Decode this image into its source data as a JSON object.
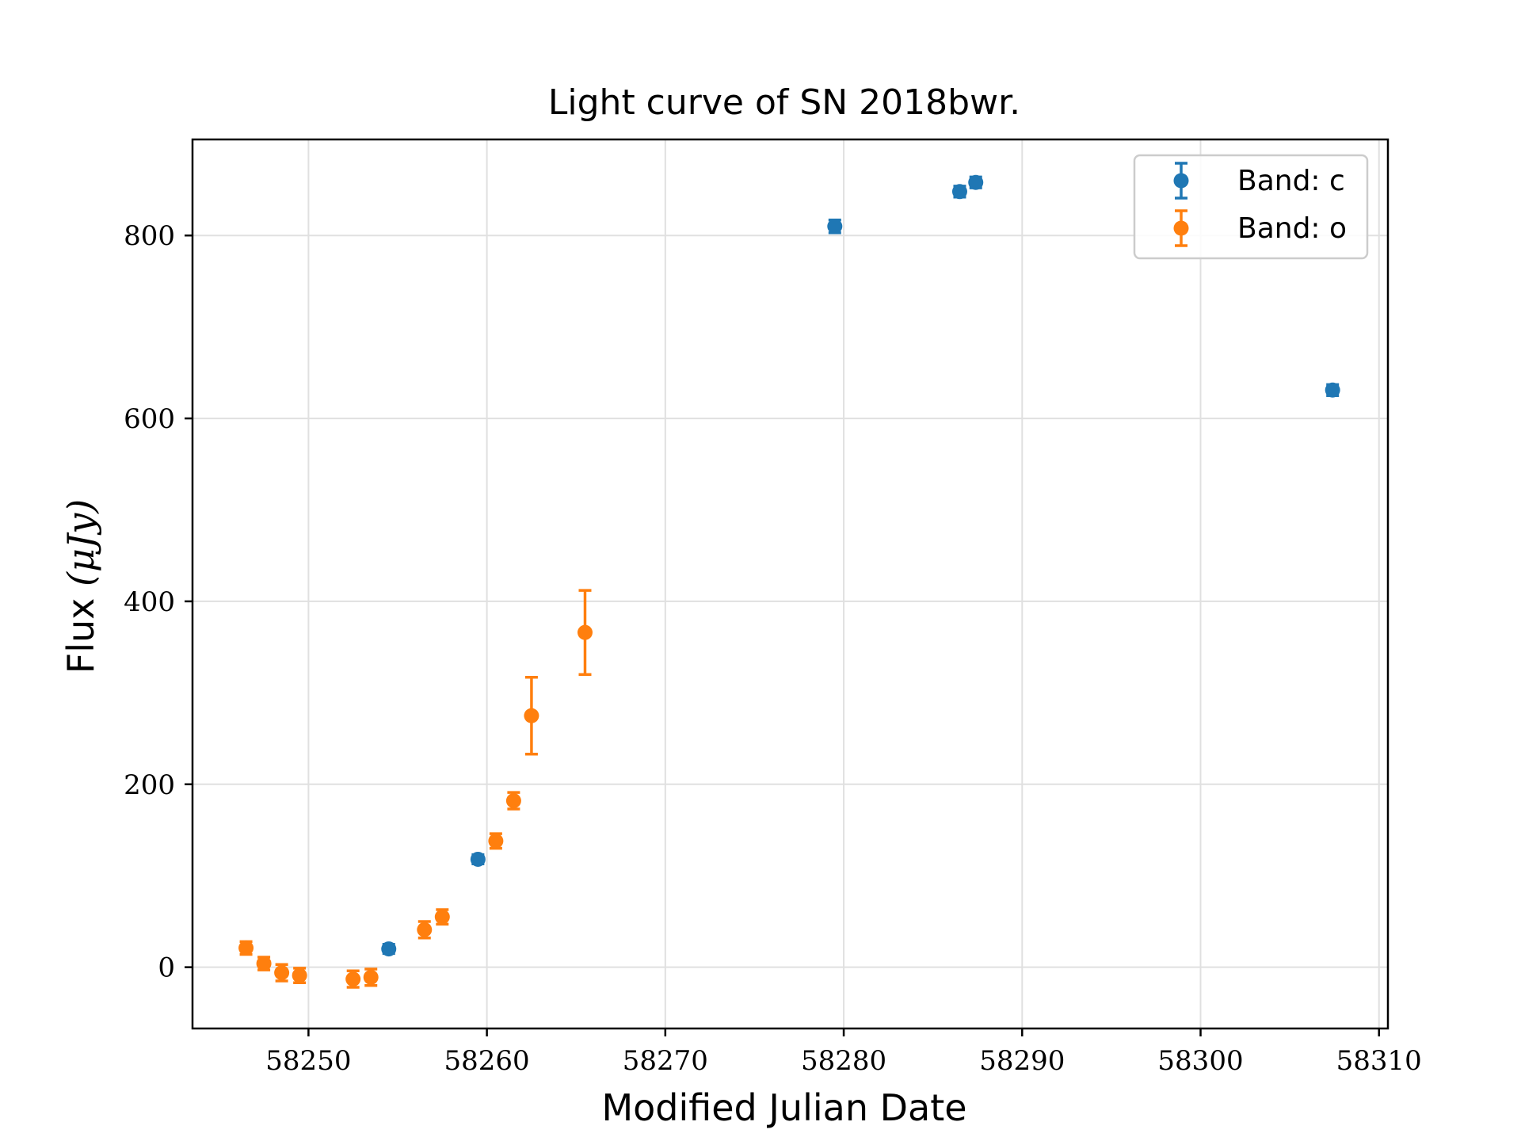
{
  "chart_data": {
    "type": "scatter",
    "title": "Light curve of SN 2018bwr.",
    "xlabel": "Modified Julian Date",
    "ylabel_text": "Flux ",
    "ylabel_math": "(μJy)",
    "xlim": [
      58243.5,
      58310.5
    ],
    "ylim": [
      -67,
      905
    ],
    "xticks": [
      58250,
      58260,
      58270,
      58280,
      58290,
      58300,
      58310
    ],
    "yticks": [
      0,
      200,
      400,
      600,
      800
    ],
    "grid": true,
    "legend_position": "top-right",
    "series": [
      {
        "name": "Band: c",
        "color": "#1f77b4",
        "points": [
          {
            "x": 58254.5,
            "y": 20,
            "err": 5
          },
          {
            "x": 58259.5,
            "y": 118,
            "err": 5
          },
          {
            "x": 58279.5,
            "y": 810,
            "err": 7
          },
          {
            "x": 58286.5,
            "y": 848,
            "err": 6
          },
          {
            "x": 58287.4,
            "y": 858,
            "err": 6
          },
          {
            "x": 58307.4,
            "y": 631,
            "err": 6
          }
        ]
      },
      {
        "name": "Band: o",
        "color": "#ff7f0e",
        "points": [
          {
            "x": 58246.5,
            "y": 21,
            "err": 7
          },
          {
            "x": 58247.5,
            "y": 4,
            "err": 7
          },
          {
            "x": 58248.5,
            "y": -6,
            "err": 9
          },
          {
            "x": 58249.5,
            "y": -9,
            "err": 8
          },
          {
            "x": 58252.5,
            "y": -13,
            "err": 9
          },
          {
            "x": 58253.5,
            "y": -11,
            "err": 9
          },
          {
            "x": 58256.5,
            "y": 41,
            "err": 9
          },
          {
            "x": 58257.5,
            "y": 55,
            "err": 8
          },
          {
            "x": 58260.5,
            "y": 138,
            "err": 8
          },
          {
            "x": 58261.5,
            "y": 182,
            "err": 9
          },
          {
            "x": 58262.5,
            "y": 275,
            "err": 42
          },
          {
            "x": 58265.5,
            "y": 366,
            "err": 46
          }
        ]
      }
    ]
  }
}
